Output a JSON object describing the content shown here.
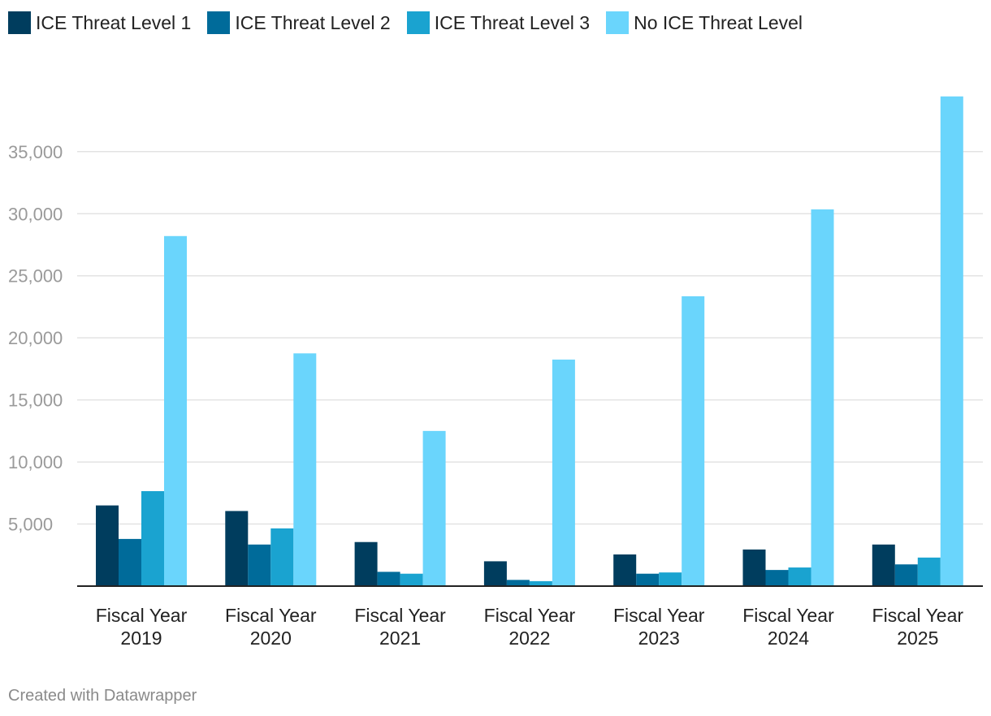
{
  "chart_data": {
    "type": "bar",
    "title": "",
    "xlabel": "",
    "ylabel": "",
    "ylim": [
      0,
      39500
    ],
    "yticks": [
      5000,
      10000,
      15000,
      20000,
      25000,
      30000,
      35000
    ],
    "ytick_labels": [
      "5,000",
      "10,000",
      "15,000",
      "20,000",
      "25,000",
      "30,000",
      "35,000"
    ],
    "categories": [
      [
        "Fiscal Year",
        "2019"
      ],
      [
        "Fiscal Year",
        "2020"
      ],
      [
        "Fiscal Year",
        "2021"
      ],
      [
        "Fiscal Year",
        "2022"
      ],
      [
        "Fiscal Year",
        "2023"
      ],
      [
        "Fiscal Year",
        "2024"
      ],
      [
        "Fiscal Year",
        "2025"
      ]
    ],
    "series": [
      {
        "name": "ICE Threat Level 1",
        "color": "#003d5e",
        "values": [
          6500,
          6050,
          3550,
          2000,
          2550,
          2950,
          3350
        ]
      },
      {
        "name": "ICE Threat Level 2",
        "color": "#006b9a",
        "values": [
          3800,
          3350,
          1150,
          500,
          1000,
          1300,
          1750
        ]
      },
      {
        "name": "ICE Threat Level 3",
        "color": "#1aa3d0",
        "values": [
          7650,
          4650,
          1000,
          400,
          1100,
          1500,
          2300
        ]
      },
      {
        "name": "No ICE Threat Level",
        "color": "#6ad5fc",
        "values": [
          28200,
          18750,
          12500,
          18250,
          23350,
          30350,
          39450
        ]
      }
    ],
    "grid": true,
    "legend": "top-left"
  },
  "footer": {
    "credit": "Created with Datawrapper"
  }
}
